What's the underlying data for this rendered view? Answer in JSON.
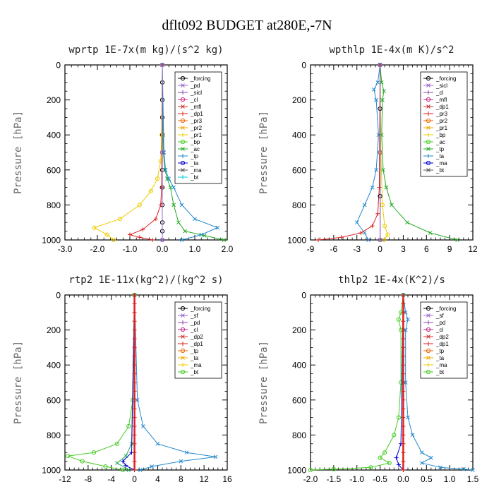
{
  "figure_title": "dflt092  BUDGET at280E,-7N",
  "chart_data": [
    {
      "type": "line",
      "title": "wprtp   1E-7x(m kg)/(s^2 kg)",
      "ylabel": "Pressure [hPa]",
      "xlim": [
        -3.0,
        2.0
      ],
      "ylim": [
        0,
        1000
      ],
      "y_inverted": true,
      "xticks": [
        "-3.0",
        "-2.0",
        "-1.0",
        "0.0",
        "1.0",
        "2.0"
      ],
      "xtick_values": [
        -3,
        -2,
        -1,
        0,
        1,
        2
      ],
      "yticks": [
        "0",
        "200",
        "400",
        "600",
        "800",
        "1000"
      ],
      "ytick_values": [
        0,
        200,
        400,
        600,
        800,
        1000
      ],
      "legend_position": "top-right",
      "legend": [
        "_forcing",
        "_pd",
        "_sicl",
        "_cl",
        "_mfl",
        "_dp1",
        "_pr3",
        "_pr2",
        "_pr1",
        "_bp",
        "_ac",
        "_tp",
        "_ta",
        "_ma",
        "_bt"
      ],
      "series": [
        {
          "name": "_forcing",
          "color": "#000000",
          "marker": "o",
          "x": [
            0,
            0,
            0,
            0,
            0,
            0,
            0,
            0,
            0,
            0,
            0,
            0
          ],
          "y": [
            0,
            100,
            200,
            300,
            400,
            500,
            600,
            700,
            800,
            900,
            950,
            1000
          ]
        },
        {
          "name": "_ac",
          "color": "#22aa22",
          "marker": "x",
          "x": [
            0,
            0.02,
            0.03,
            0.08,
            0.15,
            0.25,
            0.35,
            0.5,
            0.7,
            1.3,
            1.9
          ],
          "y": [
            0,
            400,
            500,
            600,
            650,
            700,
            800,
            900,
            950,
            975,
            1000
          ]
        },
        {
          "name": "_pr1",
          "color": "#eecc00",
          "marker": "o",
          "x": [
            0,
            -0.02,
            -0.05,
            -0.15,
            -0.35,
            -0.7,
            -1.3,
            -2.1,
            -1.7,
            -1.5
          ],
          "y": [
            0,
            400,
            550,
            650,
            720,
            800,
            880,
            930,
            970,
            1000
          ]
        },
        {
          "name": "_tp",
          "color": "#2288cc",
          "marker": "x",
          "x": [
            0,
            0.05,
            0.1,
            0.2,
            0.35,
            0.6,
            1.0,
            1.7,
            1.2,
            0.6
          ],
          "y": [
            0,
            500,
            600,
            650,
            700,
            800,
            880,
            930,
            970,
            1000
          ]
        },
        {
          "name": "_dp1",
          "color": "#dd2222",
          "marker": "+",
          "x": [
            0,
            -0.02,
            -0.05,
            -0.2,
            -0.6,
            -1.0,
            -0.7,
            -0.3
          ],
          "y": [
            0,
            700,
            800,
            880,
            940,
            970,
            985,
            1000
          ]
        },
        {
          "name": "_bt",
          "color": "#9966cc",
          "marker": "o",
          "x": [
            0,
            0,
            0
          ],
          "y": [
            0,
            500,
            1000
          ]
        }
      ]
    },
    {
      "type": "line",
      "title": "wpthlp   1E-4x(m K)/s^2",
      "ylabel": "Pressure [hPa]",
      "xlim": [
        -9,
        12
      ],
      "ylim": [
        0,
        1000
      ],
      "y_inverted": true,
      "xticks": [
        "-9",
        "-6",
        "-3",
        "0",
        "3",
        "6",
        "9",
        "12"
      ],
      "xtick_values": [
        -9,
        -6,
        -3,
        0,
        3,
        6,
        9,
        12
      ],
      "yticks": [
        "0",
        "200",
        "400",
        "600",
        "800",
        "1000"
      ],
      "ytick_values": [
        0,
        200,
        400,
        600,
        800,
        1000
      ],
      "legend_position": "top-right",
      "legend": [
        "_forcing",
        "_sicl",
        "_cl",
        "_mfl",
        "_dp1",
        "_pr3",
        "_pr2",
        "_pr1",
        "_bp",
        "_ac",
        "_tp",
        "_ta",
        "_ma",
        "_bt"
      ],
      "series": [
        {
          "name": "_ac",
          "color": "#22aa22",
          "marker": "x",
          "x": [
            0,
            0.2,
            0.5,
            0.3,
            0.2,
            0.4,
            0.8,
            1.5,
            3.5,
            6.5,
            10
          ],
          "y": [
            0,
            100,
            150,
            200,
            400,
            600,
            700,
            800,
            900,
            960,
            1000
          ]
        },
        {
          "name": "_tp",
          "color": "#2288cc",
          "marker": "x",
          "x": [
            0,
            -0.3,
            -0.8,
            -0.5,
            -0.2,
            -0.5,
            -1.0,
            -2.0,
            -3.0,
            -2.0,
            -1.5
          ],
          "y": [
            0,
            100,
            140,
            200,
            400,
            600,
            700,
            800,
            900,
            960,
            1000
          ]
        },
        {
          "name": "_dp1",
          "color": "#dd2222",
          "marker": "+",
          "x": [
            0,
            -0.1,
            -0.3,
            -1.0,
            -2.5,
            -5,
            -8
          ],
          "y": [
            0,
            700,
            850,
            920,
            960,
            985,
            1000
          ]
        },
        {
          "name": "_pr1",
          "color": "#eecc00",
          "marker": "o",
          "x": [
            0,
            0.1,
            0.3,
            0.6,
            1.0,
            0.5
          ],
          "y": [
            0,
            500,
            800,
            920,
            970,
            1000
          ]
        },
        {
          "name": "_forcing",
          "color": "#000000",
          "marker": "o",
          "x": [
            0,
            0,
            0,
            0,
            0
          ],
          "y": [
            0,
            250,
            500,
            750,
            1000
          ]
        },
        {
          "name": "_bt",
          "color": "#9966cc",
          "marker": "o",
          "x": [
            0,
            0,
            0
          ],
          "y": [
            0,
            500,
            1000
          ]
        }
      ]
    },
    {
      "type": "line",
      "title": "rtp2   1E-11x(kg^2)/(kg^2 s)",
      "ylabel": "Pressure [hPa]",
      "xlim": [
        -12,
        16
      ],
      "ylim": [
        0,
        1000
      ],
      "y_inverted": true,
      "xticks": [
        "-12",
        "-8",
        "-4",
        "0",
        "4",
        "8",
        "12",
        "16"
      ],
      "xtick_values": [
        -12,
        -8,
        -4,
        0,
        4,
        8,
        12,
        16
      ],
      "yticks": [
        "0",
        "200",
        "400",
        "600",
        "800",
        "1000"
      ],
      "ytick_values": [
        0,
        200,
        400,
        600,
        800,
        1000
      ],
      "legend_position": "top-right",
      "legend": [
        "_forcing",
        "_sf",
        "_pd",
        "_cl",
        "_dp2",
        "_dp1",
        "_tp",
        "_ta",
        "_ma",
        "_bt"
      ],
      "series": [
        {
          "name": "_dp1",
          "color": "#44cc22",
          "marker": "o",
          "x": [
            0,
            -0.3,
            -1.0,
            -3.0,
            -7.0,
            -11.5,
            -9.0,
            -5.0,
            -2.0
          ],
          "y": [
            0,
            600,
            750,
            850,
            900,
            920,
            950,
            980,
            1000
          ]
        },
        {
          "name": "_tp",
          "color": "#2288cc",
          "marker": "x",
          "x": [
            0,
            0.5,
            1.5,
            4.0,
            9.0,
            14.0,
            8.0,
            3.0,
            1.0
          ],
          "y": [
            0,
            600,
            750,
            850,
            900,
            925,
            950,
            980,
            1000
          ]
        },
        {
          "name": "_dp2",
          "color": "#22aa55",
          "marker": "x",
          "x": [
            0,
            -0.5,
            -1.5,
            -3.0,
            -1.0
          ],
          "y": [
            0,
            850,
            920,
            960,
            1000
          ]
        },
        {
          "name": "_ta",
          "color": "#0000cc",
          "marker": "+",
          "x": [
            0,
            -0.5,
            -2.0,
            -1.5,
            0
          ],
          "y": [
            0,
            900,
            950,
            975,
            1000
          ]
        },
        {
          "name": "_forcing",
          "color": "#dd2222",
          "marker": "+",
          "x": [
            0,
            0,
            0,
            0,
            0,
            0,
            0,
            0,
            0,
            0,
            0,
            0,
            0,
            0,
            0,
            0,
            0,
            0,
            0,
            0,
            0
          ],
          "y": [
            0,
            50,
            100,
            150,
            200,
            250,
            300,
            350,
            400,
            450,
            500,
            550,
            600,
            650,
            700,
            750,
            800,
            850,
            900,
            950,
            1000
          ]
        }
      ]
    },
    {
      "type": "line",
      "title": "thlp2   1E-4x(K^2)/s",
      "ylabel": "Pressure [hPa]",
      "xlim": [
        -2.0,
        1.5
      ],
      "ylim": [
        0,
        1000
      ],
      "y_inverted": true,
      "xticks": [
        "-2.0",
        "-1.5",
        "-1.0",
        "-0.5",
        "0.0",
        "0.5",
        "1.0",
        "1.5"
      ],
      "xtick_values": [
        -2,
        -1.5,
        -1,
        -0.5,
        0,
        0.5,
        1,
        1.5
      ],
      "yticks": [
        "0",
        "200",
        "400",
        "600",
        "800",
        "1000"
      ],
      "ytick_values": [
        0,
        200,
        400,
        600,
        800,
        1000
      ],
      "legend_position": "top-right",
      "legend": [
        "_forcing",
        "_sf",
        "_pd",
        "_cl",
        "_dp2",
        "_dp1",
        "_tp",
        "_ta",
        "_ma",
        "_bt"
      ],
      "series": [
        {
          "name": "_dp1",
          "color": "#44cc22",
          "marker": "o",
          "x": [
            0,
            -0.05,
            -0.1,
            -0.05,
            -0.05,
            -0.1,
            -0.2,
            -0.4,
            -0.5,
            -0.3,
            -0.7,
            -1.5,
            -2.0
          ],
          "y": [
            0,
            100,
            140,
            200,
            500,
            700,
            800,
            900,
            930,
            960,
            985,
            995,
            1000
          ]
        },
        {
          "name": "_tp",
          "color": "#2288cc",
          "marker": "x",
          "x": [
            0,
            0.05,
            0.1,
            0.05,
            0.05,
            0.1,
            0.2,
            0.4,
            0.6,
            0.4,
            0.8,
            1.3,
            1.5
          ],
          "y": [
            0,
            100,
            140,
            200,
            500,
            700,
            800,
            900,
            930,
            960,
            985,
            995,
            1000
          ]
        },
        {
          "name": "_ta",
          "color": "#0000cc",
          "marker": "+",
          "x": [
            0,
            -0.05,
            -0.15,
            -0.1,
            0
          ],
          "y": [
            0,
            850,
            930,
            970,
            1000
          ]
        },
        {
          "name": "_forcing",
          "color": "#dd2222",
          "marker": "+",
          "x": [
            0,
            0,
            0,
            0,
            0,
            0,
            0,
            0,
            0,
            0,
            0,
            0,
            0,
            0,
            0,
            0,
            0,
            0,
            0,
            0,
            0
          ],
          "y": [
            0,
            50,
            100,
            150,
            200,
            250,
            300,
            350,
            400,
            450,
            500,
            550,
            600,
            650,
            700,
            750,
            800,
            850,
            900,
            950,
            1000
          ]
        }
      ]
    }
  ]
}
